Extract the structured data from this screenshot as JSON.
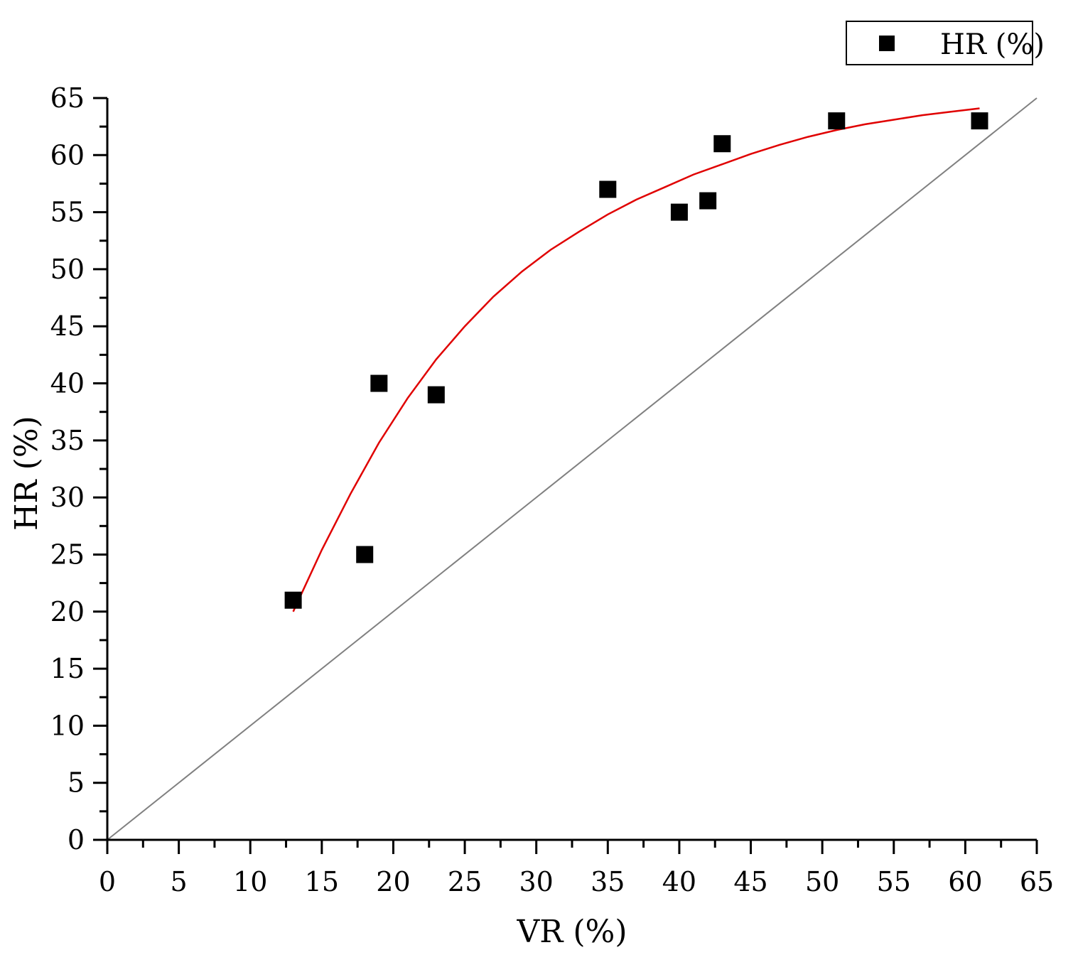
{
  "chart_data": {
    "type": "scatter",
    "title": "",
    "xlabel": "VR (%)",
    "ylabel": "HR (%)",
    "xlim": [
      0,
      65
    ],
    "ylim": [
      0,
      65
    ],
    "x_ticks": [
      "0",
      "5",
      "10",
      "15",
      "20",
      "25",
      "30",
      "35",
      "40",
      "45",
      "50",
      "55",
      "60",
      "65"
    ],
    "y_ticks": [
      "0",
      "5",
      "10",
      "15",
      "20",
      "25",
      "30",
      "35",
      "40",
      "45",
      "50",
      "55",
      "60",
      "65"
    ],
    "grid": false,
    "legend": {
      "position": "top-right",
      "entries": [
        "HR (%)"
      ]
    },
    "series": [
      {
        "name": "HR (%)",
        "marker": "square",
        "color": "#000000",
        "x": [
          13,
          18,
          19,
          23,
          35,
          40,
          42,
          43,
          51,
          61
        ],
        "y": [
          21,
          25,
          40,
          39,
          57,
          55,
          56,
          61,
          63,
          63
        ]
      }
    ],
    "fit_curve": {
      "color": "#e00000",
      "x": [
        13,
        15,
        17,
        19,
        21,
        23,
        25,
        27,
        29,
        31,
        33,
        35,
        37,
        39,
        41,
        43,
        45,
        47,
        49,
        51,
        53,
        55,
        57,
        59,
        61
      ],
      "y": [
        20.0,
        25.4,
        30.3,
        34.8,
        38.7,
        42.1,
        45.0,
        47.6,
        49.8,
        51.7,
        53.3,
        54.8,
        56.1,
        57.2,
        58.3,
        59.2,
        60.1,
        60.9,
        61.6,
        62.2,
        62.7,
        63.1,
        63.5,
        63.8,
        64.1
      ]
    },
    "reference_line": {
      "color": "#808080",
      "x": [
        0,
        65
      ],
      "y": [
        0,
        65
      ]
    }
  }
}
